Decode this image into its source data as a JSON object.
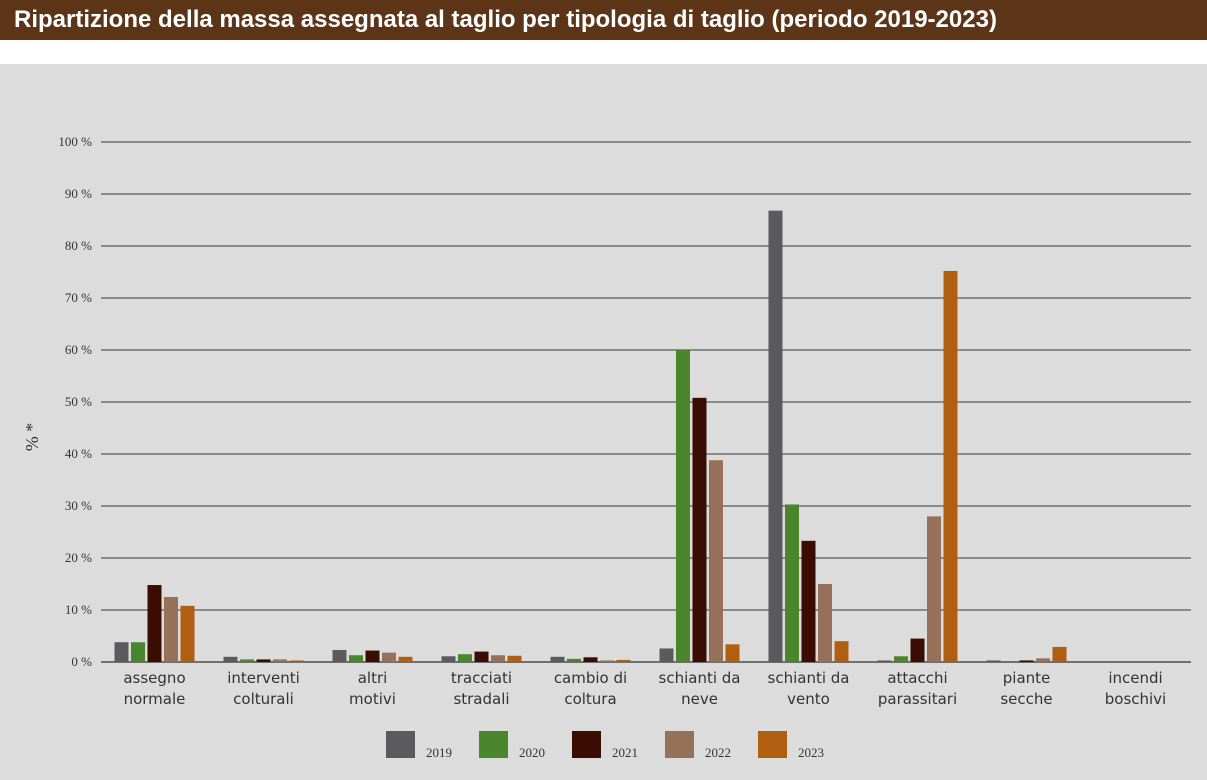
{
  "chart_data": {
    "type": "bar",
    "title": "Ripartizione della massa assegnata al taglio per tipologia di taglio (periodo 2019-2023)",
    "xlabel": "",
    "ylabel": "% *",
    "ylim": [
      0,
      100
    ],
    "yticks": [
      0,
      10,
      20,
      30,
      40,
      50,
      60,
      70,
      80,
      90,
      100
    ],
    "ytick_suffix": " %",
    "grid": true,
    "legend_position": "bottom",
    "categories": [
      [
        "assegno",
        "normale"
      ],
      [
        "interventi",
        "colturali"
      ],
      [
        "altri",
        "motivi"
      ],
      [
        "tracciati",
        "stradali"
      ],
      [
        "cambio di",
        "coltura"
      ],
      [
        "schianti da",
        "neve"
      ],
      [
        "schianti da",
        "vento"
      ],
      [
        "attacchi",
        "parassitari"
      ],
      [
        "piante",
        "secche"
      ],
      [
        "incendi",
        "boschivi"
      ]
    ],
    "series": [
      {
        "name": "2019",
        "color": "#5b5b5d",
        "values": [
          3.8,
          1.0,
          2.3,
          1.1,
          1.0,
          2.6,
          86.8,
          0.3,
          0.3,
          0
        ]
      },
      {
        "name": "2020",
        "color": "#4a862c",
        "values": [
          3.8,
          0.5,
          1.3,
          1.5,
          0.6,
          60.0,
          30.3,
          1.1,
          0.1,
          0
        ]
      },
      {
        "name": "2021",
        "color": "#3a0c02",
        "values": [
          14.8,
          0.5,
          2.2,
          2.0,
          0.9,
          50.8,
          23.3,
          4.5,
          0.3,
          0
        ]
      },
      {
        "name": "2022",
        "color": "#97705a",
        "values": [
          12.5,
          0.5,
          1.8,
          1.3,
          0.3,
          38.8,
          15.0,
          28.0,
          0.7,
          0
        ]
      },
      {
        "name": "2023",
        "color": "#b05e10",
        "values": [
          10.8,
          0.3,
          1.0,
          1.2,
          0.4,
          3.4,
          4.0,
          75.2,
          2.9,
          0
        ]
      }
    ]
  }
}
